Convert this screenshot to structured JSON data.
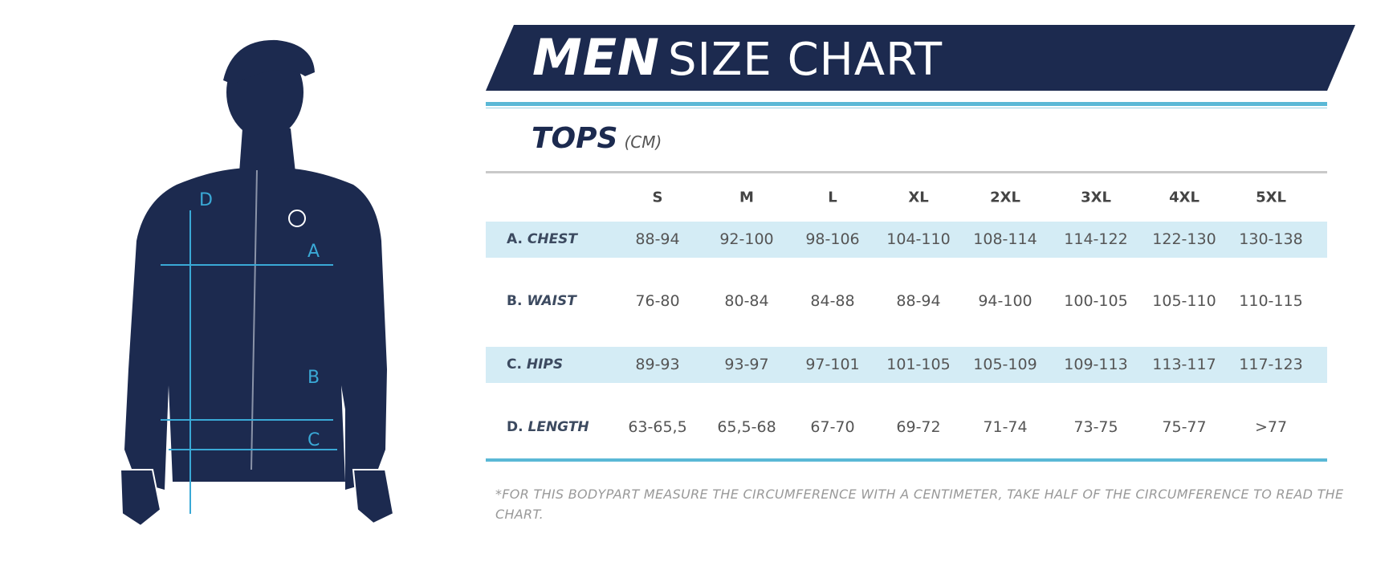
{
  "title": {
    "bold": "MEN",
    "rest": "SIZE CHART"
  },
  "section": {
    "title": "TOPS",
    "unit": "(CM)"
  },
  "figure_labels": [
    "A",
    "B",
    "C",
    "D"
  ],
  "table": {
    "sizes": [
      "S",
      "M",
      "L",
      "XL",
      "2XL",
      "3XL",
      "4XL",
      "5XL"
    ],
    "rows": [
      {
        "prefix": "A.",
        "label": "CHEST",
        "values": [
          "88-94",
          "92-100",
          "98-106",
          "104-110",
          "108-114",
          "114-122",
          "122-130",
          "130-138"
        ]
      },
      {
        "prefix": "B.",
        "label": "WAIST",
        "values": [
          "76-80",
          "80-84",
          "84-88",
          "88-94",
          "94-100",
          "100-105",
          "105-110",
          "110-115"
        ]
      },
      {
        "prefix": "C.",
        "label": "HIPS",
        "values": [
          "89-93",
          "93-97",
          "97-101",
          "101-105",
          "105-109",
          "109-113",
          "113-117",
          "117-123"
        ]
      },
      {
        "prefix": "D.",
        "label": "LENGTH",
        "values": [
          "63-65,5",
          "65,5-68",
          "67-70",
          "69-72",
          "71-74",
          "73-75",
          "75-77",
          ">77"
        ]
      }
    ]
  },
  "footnote": "*FOR THIS BODYPART MEASURE THE CIRCUMFERENCE WITH A CENTIMETER, TAKE HALF OF THE CIRCUMFERENCE TO READ THE CHART.",
  "colors": {
    "navy": "#1c2a4f",
    "cyan": "#5ab8d6",
    "band": "#d4ecf5"
  }
}
